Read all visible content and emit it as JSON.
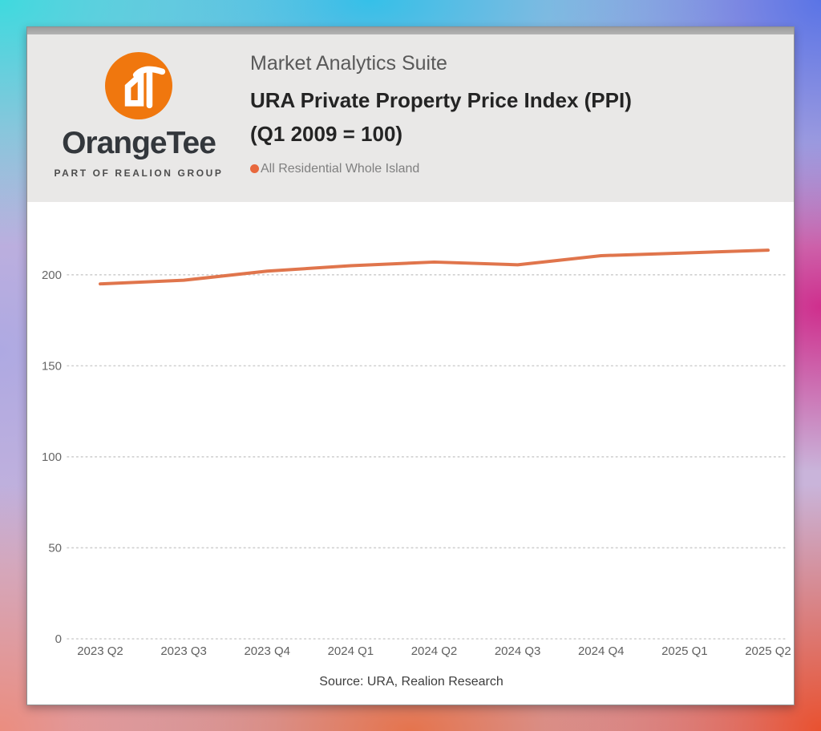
{
  "card": {
    "brand": {
      "logo_icon": "orangetee-ot-icon",
      "logo_color": "#F0770E",
      "wordmark": "OrangeTee",
      "tagline": "PART OF REALION GROUP"
    },
    "header": {
      "suite_title": "Market Analytics Suite",
      "chart_title_line1": "URA Private Property Price Index (PPI)",
      "chart_title_line2": "(Q1 2009 = 100)",
      "legend": {
        "label": "All Residential Whole Island",
        "color": "#E8683D"
      }
    },
    "footer": {
      "source": "Source: URA, Realion Research"
    }
  },
  "chart_data": {
    "type": "line",
    "title": "URA Private Property Price Index (PPI) (Q1 2009 = 100)",
    "categories": [
      "2023 Q2",
      "2023 Q3",
      "2023 Q4",
      "2024 Q1",
      "2024 Q2",
      "2024 Q3",
      "2024 Q4",
      "2025 Q1",
      "2025 Q2"
    ],
    "series": [
      {
        "name": "All Residential Whole Island",
        "color": "#E0754C",
        "values": [
          195,
          197,
          202,
          205,
          207,
          205.5,
          210.5,
          212,
          213.5
        ]
      }
    ],
    "y_ticks": [
      0,
      50,
      100,
      150,
      200
    ],
    "ylim": [
      0,
      240
    ],
    "xlabel": "",
    "ylabel": "",
    "grid": "horizontal-dotted",
    "gridline_color": "#cfcfcf",
    "tick_label_color": "#666666",
    "legend_position": "top-left-under-title"
  }
}
